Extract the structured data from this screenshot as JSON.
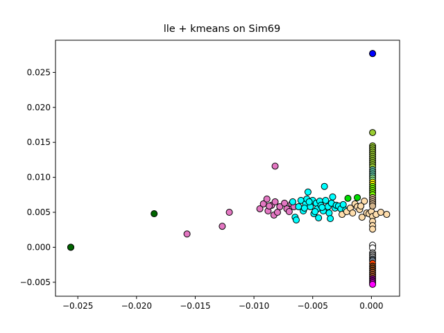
{
  "chart_data": {
    "type": "scatter",
    "title": "lle + kmeans on Sim69",
    "xlabel": "",
    "ylabel": "",
    "xlim": [
      -0.0269,
      0.0024
    ],
    "ylim": [
      -0.007,
      0.0296
    ],
    "grid": false,
    "legend": "none",
    "x_ticks": [
      {
        "value": -0.025,
        "label": "−0.025"
      },
      {
        "value": -0.02,
        "label": "−0.020"
      },
      {
        "value": -0.015,
        "label": "−0.015"
      },
      {
        "value": -0.01,
        "label": "−0.010"
      },
      {
        "value": -0.005,
        "label": "−0.005"
      },
      {
        "value": 0.0,
        "label": "0.000"
      }
    ],
    "y_ticks": [
      {
        "value": -0.005,
        "label": "−0.005"
      },
      {
        "value": 0.0,
        "label": "0.000"
      },
      {
        "value": 0.005,
        "label": "0.005"
      },
      {
        "value": 0.01,
        "label": "0.010"
      },
      {
        "value": 0.015,
        "label": "0.015"
      },
      {
        "value": 0.02,
        "label": "0.020"
      },
      {
        "value": 0.025,
        "label": "0.025"
      }
    ],
    "marker_edge_color": "#000000",
    "series": [
      {
        "color": "#0000ff",
        "points": [
          [
            0.0001,
            0.0277
          ],
          [
            0.0001,
            0.0277
          ]
        ]
      },
      {
        "color": "#006400",
        "points": [
          [
            -0.0256,
            0.0
          ],
          [
            -0.0256,
            0.0
          ],
          [
            -0.0185,
            0.0048
          ]
        ]
      },
      {
        "color": "#e377c2",
        "points": [
          [
            -0.0157,
            0.0019
          ],
          [
            -0.0127,
            0.003
          ],
          [
            -0.0121,
            0.005
          ],
          [
            -0.0095,
            0.0055
          ],
          [
            -0.0092,
            0.0062
          ],
          [
            -0.0089,
            0.0069
          ],
          [
            -0.0088,
            0.0052
          ],
          [
            -0.0085,
            0.006
          ],
          [
            -0.0083,
            0.0046
          ],
          [
            -0.0082,
            0.0065
          ],
          [
            -0.008,
            0.005
          ],
          [
            -0.0078,
            0.0058
          ],
          [
            -0.0082,
            0.0116
          ],
          [
            -0.0074,
            0.0063
          ],
          [
            -0.0072,
            0.0055
          ],
          [
            -0.007,
            0.0051
          ],
          [
            -0.0068,
            0.0062
          ],
          [
            -0.0066,
            0.0058
          ],
          [
            -0.0087,
            0.0059
          ]
        ]
      },
      {
        "color": "#00ffff",
        "points": [
          [
            -0.0067,
            0.0065
          ],
          [
            -0.0065,
            0.0043
          ],
          [
            -0.0064,
            0.0039
          ],
          [
            -0.0062,
            0.0058
          ],
          [
            -0.006,
            0.0067
          ],
          [
            -0.0058,
            0.0052
          ],
          [
            -0.0056,
            0.0062
          ],
          [
            -0.0055,
            0.0069
          ],
          [
            -0.0054,
            0.0079
          ],
          [
            -0.0052,
            0.0058
          ],
          [
            -0.005,
            0.0067
          ],
          [
            -0.0049,
            0.0048
          ],
          [
            -0.0047,
            0.0063
          ],
          [
            -0.0046,
            0.0055
          ],
          [
            -0.0045,
            0.0042
          ],
          [
            -0.0044,
            0.0066
          ],
          [
            -0.0043,
            0.006
          ],
          [
            -0.0041,
            0.0052
          ],
          [
            -0.004,
            0.0087
          ],
          [
            -0.0039,
            0.0067
          ],
          [
            -0.0037,
            0.0058
          ],
          [
            -0.0036,
            0.0049
          ],
          [
            -0.0035,
            0.0041
          ],
          [
            -0.0034,
            0.0063
          ],
          [
            -0.0033,
            0.0072
          ],
          [
            -0.0031,
            0.0056
          ],
          [
            -0.003,
            0.006
          ],
          [
            -0.0028,
            0.0059
          ],
          [
            -0.0026,
            0.0055
          ],
          [
            -0.0024,
            0.0061
          ],
          [
            -0.0022,
            0.0053
          ],
          [
            -0.0057,
            0.0056
          ],
          [
            -0.0053,
            0.0065
          ],
          [
            -0.0048,
            0.0051
          ],
          [
            -0.0042,
            0.0057
          ]
        ]
      },
      {
        "color": "#ffdead",
        "points": [
          [
            -0.0025,
            0.0047
          ],
          [
            -0.0021,
            0.0051
          ],
          [
            -0.0018,
            0.0056
          ],
          [
            -0.0016,
            0.0049
          ],
          [
            -0.0014,
            0.0062
          ],
          [
            -0.0012,
            0.0058
          ],
          [
            -0.001,
            0.0054
          ],
          [
            -0.0008,
            0.0043
          ],
          [
            -0.0006,
            0.0066
          ],
          [
            -0.0004,
            0.0049
          ],
          [
            -0.0002,
            0.0048
          ],
          [
            0.0,
            0.0051
          ],
          [
            0.0001,
            0.0044
          ],
          [
            0.0001,
            0.0037
          ],
          [
            0.0001,
            0.0031
          ],
          [
            0.0001,
            0.0026
          ],
          [
            0.0004,
            0.0047
          ],
          [
            0.0008,
            0.005
          ],
          [
            0.0013,
            0.0047
          ],
          [
            -0.0009,
            0.0059
          ]
        ]
      },
      {
        "color": "#00dd00",
        "points": [
          [
            -0.002,
            0.007
          ],
          [
            -0.0012,
            0.0071
          ]
        ]
      },
      {
        "color": "#9acd32",
        "points": [
          [
            0.0001,
            0.0164
          ],
          [
            0.0001,
            0.0145
          ],
          [
            0.0001,
            0.0142
          ],
          [
            0.0001,
            0.0139
          ],
          [
            0.0001,
            0.0136
          ],
          [
            0.0001,
            0.0133
          ],
          [
            0.0001,
            0.013
          ],
          [
            0.0001,
            0.0127
          ],
          [
            0.0001,
            0.0124
          ],
          [
            0.0001,
            0.0121
          ],
          [
            0.0001,
            0.0118
          ],
          [
            0.0001,
            0.0115
          ]
        ]
      },
      {
        "color": "#66cdaa",
        "points": [
          [
            0.0001,
            0.0111
          ],
          [
            0.0001,
            0.0108
          ],
          [
            0.0001,
            0.0105
          ],
          [
            0.0001,
            0.0102
          ]
        ]
      },
      {
        "color": "#98fb98",
        "points": [
          [
            0.0001,
            0.0099
          ],
          [
            0.0001,
            0.0096
          ]
        ]
      },
      {
        "color": "#ffff00",
        "points": [
          [
            0.0001,
            0.0093
          ],
          [
            0.0001,
            0.009
          ]
        ]
      },
      {
        "color": "#7cfc00",
        "points": [
          [
            0.0001,
            0.0087
          ],
          [
            0.0001,
            0.0084
          ],
          [
            0.0001,
            0.0081
          ],
          [
            0.0001,
            0.0078
          ],
          [
            0.0001,
            0.0075
          ]
        ]
      },
      {
        "color": "#d2b48c",
        "points": [
          [
            0.0001,
            0.0071
          ],
          [
            0.0001,
            0.0068
          ],
          [
            0.0001,
            0.0065
          ],
          [
            0.0001,
            0.0062
          ],
          [
            0.0001,
            0.0059
          ]
        ]
      },
      {
        "color": "#ffffff",
        "points": [
          [
            0.0001,
            0.0003
          ],
          [
            0.0001,
            -0.0001
          ]
        ]
      },
      {
        "color": "#a9a9a9",
        "points": [
          [
            0.0001,
            -0.0008
          ],
          [
            0.0001,
            -0.0011
          ],
          [
            0.0001,
            -0.0014
          ]
        ]
      },
      {
        "color": "#708090",
        "points": [
          [
            0.0001,
            -0.0017
          ],
          [
            0.0001,
            -0.0019
          ]
        ]
      },
      {
        "color": "#ff4500",
        "points": [
          [
            0.0001,
            -0.0023
          ]
        ]
      },
      {
        "color": "#8b4513",
        "points": [
          [
            0.0001,
            -0.0027
          ],
          [
            0.0001,
            -0.003
          ],
          [
            0.0001,
            -0.0033
          ]
        ]
      },
      {
        "color": "#a0522d",
        "points": [
          [
            0.0001,
            -0.0036
          ],
          [
            0.0001,
            -0.0039
          ],
          [
            0.0001,
            -0.0042
          ]
        ]
      },
      {
        "color": "#800080",
        "points": [
          [
            0.0001,
            -0.0045
          ],
          [
            0.0001,
            -0.0048
          ]
        ]
      },
      {
        "color": "#ff00ff",
        "points": [
          [
            0.0001,
            -0.0051
          ],
          [
            0.0001,
            -0.0053
          ]
        ]
      }
    ]
  }
}
